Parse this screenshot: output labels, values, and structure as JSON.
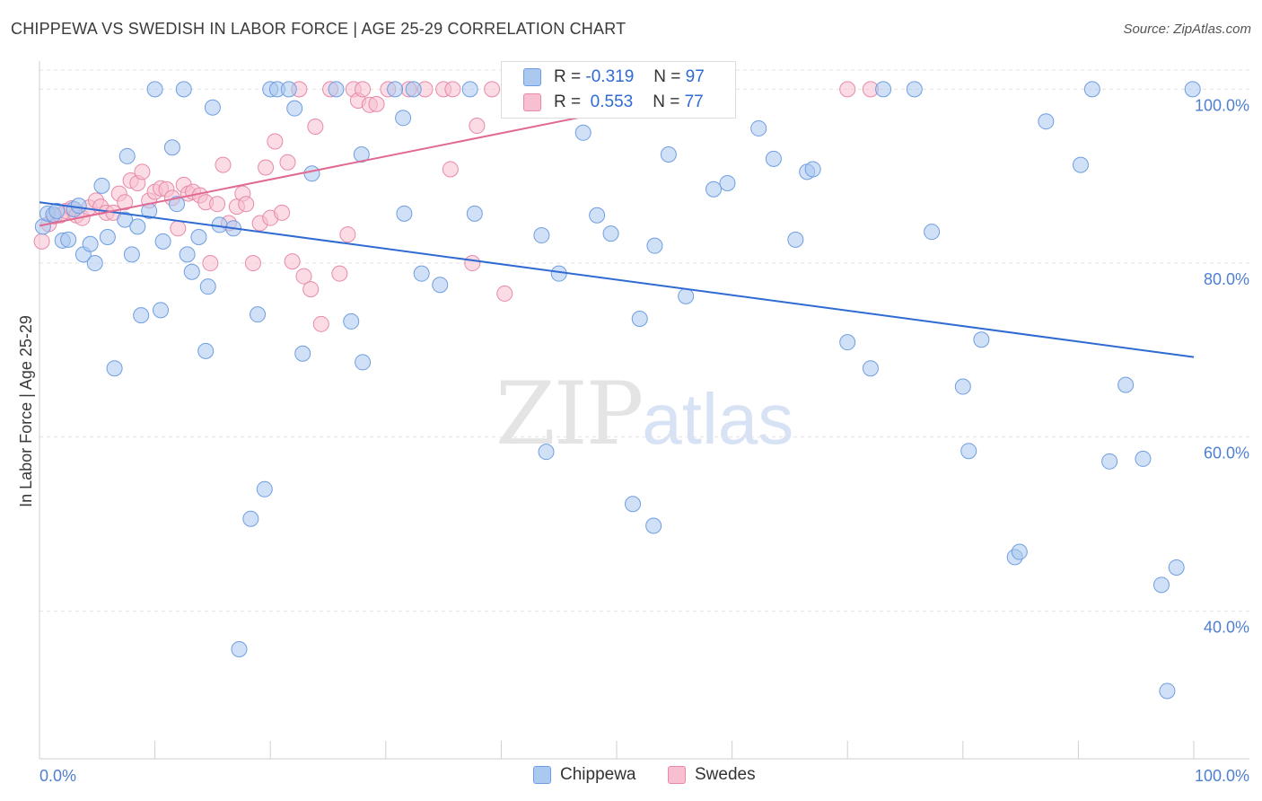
{
  "header": {
    "title": "CHIPPEWA VS SWEDISH IN LABOR FORCE | AGE 25-29 CORRELATION CHART",
    "source": "Source: ZipAtlas.com"
  },
  "watermark": {
    "zip": "ZIP",
    "atlas": "atlas"
  },
  "colors": {
    "chippewa_fill": "#aac8f0",
    "chippewa_stroke": "#6f9ee0",
    "chippewa_line": "#2f6bd3",
    "swedes_fill": "#f7bfd0",
    "swedes_stroke": "#e88aa8",
    "swedes_line": "#e06a93",
    "tick_text": "#4f7fd0"
  },
  "stats": {
    "chippewa": {
      "r_label": "R =",
      "r_value": "-0.319",
      "n_label": "N =",
      "n_value": "97"
    },
    "swedes": {
      "r_label": "R =",
      "r_value": " 0.553",
      "n_label": "N =",
      "n_value": "77"
    }
  },
  "legend": {
    "chippewa": "Chippewa",
    "swedes": "Swedes"
  },
  "chart_data": {
    "type": "scatter",
    "title": "CHIPPEWA VS SWEDISH IN LABOR FORCE | AGE 25-29 CORRELATION CHART",
    "xlabel": "",
    "ylabel": "In Labor Force | Age 25-29",
    "xlim": [
      0,
      100
    ],
    "ylim": [
      23,
      102
    ],
    "x_tick_labels": [
      "0.0%",
      "100.0%"
    ],
    "y_ticks": [
      40,
      60,
      80,
      100
    ],
    "y_tick_labels": [
      "40.0%",
      "60.0%",
      "80.0%",
      "100.0%"
    ],
    "grid": true,
    "legend_position": "bottom-center",
    "series": [
      {
        "name": "Chippewa",
        "trend": [
          [
            0,
            87.0
          ],
          [
            100,
            69.2
          ]
        ],
        "points": [
          [
            0.3,
            84.2
          ],
          [
            0.7,
            85.7
          ],
          [
            1.2,
            85.6
          ],
          [
            1.5,
            86.0
          ],
          [
            2.0,
            82.6
          ],
          [
            2.5,
            82.7
          ],
          [
            3.0,
            86.2
          ],
          [
            3.4,
            86.6
          ],
          [
            3.8,
            81.0
          ],
          [
            4.4,
            82.2
          ],
          [
            4.8,
            80.0
          ],
          [
            5.4,
            88.9
          ],
          [
            5.9,
            83.0
          ],
          [
            6.5,
            67.9
          ],
          [
            7.4,
            85.0
          ],
          [
            7.6,
            92.3
          ],
          [
            8.0,
            81.0
          ],
          [
            8.5,
            84.2
          ],
          [
            8.8,
            74.0
          ],
          [
            9.5,
            86.0
          ],
          [
            10.0,
            100.0
          ],
          [
            10.5,
            74.6
          ],
          [
            10.7,
            82.5
          ],
          [
            11.5,
            93.3
          ],
          [
            11.9,
            86.8
          ],
          [
            12.5,
            100.0
          ],
          [
            12.8,
            81.0
          ],
          [
            13.2,
            79.0
          ],
          [
            13.8,
            83.0
          ],
          [
            14.4,
            69.9
          ],
          [
            14.6,
            77.3
          ],
          [
            15.0,
            97.9
          ],
          [
            15.6,
            84.4
          ],
          [
            16.8,
            84.0
          ],
          [
            17.3,
            35.6
          ],
          [
            18.3,
            50.6
          ],
          [
            18.9,
            74.1
          ],
          [
            19.5,
            54.0
          ],
          [
            20.0,
            100.0
          ],
          [
            20.6,
            100.0
          ],
          [
            21.6,
            100.0
          ],
          [
            22.1,
            97.8
          ],
          [
            22.8,
            69.6
          ],
          [
            23.6,
            90.3
          ],
          [
            25.7,
            100.0
          ],
          [
            27.0,
            73.3
          ],
          [
            27.9,
            92.5
          ],
          [
            28.0,
            68.6
          ],
          [
            30.8,
            100.0
          ],
          [
            31.5,
            96.7
          ],
          [
            31.6,
            85.7
          ],
          [
            32.4,
            100.0
          ],
          [
            33.1,
            78.8
          ],
          [
            34.7,
            77.5
          ],
          [
            37.3,
            100.0
          ],
          [
            37.7,
            85.7
          ],
          [
            41.0,
            100.0
          ],
          [
            43.5,
            83.2
          ],
          [
            43.9,
            58.3
          ],
          [
            45.0,
            78.8
          ],
          [
            47.1,
            95.0
          ],
          [
            48.3,
            85.5
          ],
          [
            49.5,
            83.4
          ],
          [
            49.9,
            100.0
          ],
          [
            51.4,
            52.3
          ],
          [
            52.0,
            73.6
          ],
          [
            53.2,
            49.8
          ],
          [
            53.3,
            82.0
          ],
          [
            54.5,
            92.5
          ],
          [
            56.0,
            76.2
          ],
          [
            58.4,
            88.5
          ],
          [
            59.6,
            89.2
          ],
          [
            62.3,
            95.5
          ],
          [
            63.6,
            92.0
          ],
          [
            65.5,
            82.7
          ],
          [
            66.5,
            90.5
          ],
          [
            67.0,
            90.8
          ],
          [
            70.0,
            70.9
          ],
          [
            72.0,
            67.9
          ],
          [
            73.1,
            100.0
          ],
          [
            75.8,
            100.0
          ],
          [
            77.3,
            83.6
          ],
          [
            80.0,
            65.8
          ],
          [
            80.5,
            58.4
          ],
          [
            81.6,
            71.2
          ],
          [
            84.5,
            46.2
          ],
          [
            84.9,
            46.8
          ],
          [
            87.2,
            96.3
          ],
          [
            90.2,
            91.3
          ],
          [
            91.2,
            100.0
          ],
          [
            92.7,
            57.2
          ],
          [
            94.1,
            66.0
          ],
          [
            95.6,
            57.5
          ],
          [
            97.2,
            43.0
          ],
          [
            98.5,
            45.0
          ],
          [
            97.7,
            30.8
          ],
          [
            99.9,
            100.0
          ]
        ]
      },
      {
        "name": "Swedes",
        "trend": [
          [
            0,
            84.3
          ],
          [
            59,
            100.0
          ]
        ],
        "points": [
          [
            0.2,
            82.5
          ],
          [
            0.8,
            84.5
          ],
          [
            1.3,
            85.4
          ],
          [
            1.8,
            85.5
          ],
          [
            2.3,
            86.0
          ],
          [
            2.8,
            86.3
          ],
          [
            3.2,
            85.5
          ],
          [
            3.7,
            85.2
          ],
          [
            4.3,
            86.4
          ],
          [
            4.9,
            87.2
          ],
          [
            5.3,
            86.5
          ],
          [
            5.8,
            85.8
          ],
          [
            6.4,
            85.8
          ],
          [
            6.9,
            88.0
          ],
          [
            7.4,
            87.0
          ],
          [
            7.9,
            89.5
          ],
          [
            8.5,
            89.2
          ],
          [
            8.9,
            90.5
          ],
          [
            9.5,
            87.2
          ],
          [
            10.0,
            88.2
          ],
          [
            10.5,
            88.6
          ],
          [
            11.0,
            88.5
          ],
          [
            11.5,
            87.5
          ],
          [
            12.0,
            84.0
          ],
          [
            12.5,
            89.0
          ],
          [
            12.9,
            88.0
          ],
          [
            13.3,
            88.2
          ],
          [
            13.9,
            87.8
          ],
          [
            14.4,
            87.0
          ],
          [
            14.8,
            80.0
          ],
          [
            15.4,
            86.8
          ],
          [
            15.9,
            91.3
          ],
          [
            16.4,
            84.6
          ],
          [
            17.1,
            86.5
          ],
          [
            17.6,
            88.0
          ],
          [
            17.9,
            86.8
          ],
          [
            18.5,
            80.0
          ],
          [
            19.1,
            84.6
          ],
          [
            19.6,
            91.0
          ],
          [
            20.0,
            85.2
          ],
          [
            20.4,
            94.0
          ],
          [
            21.0,
            85.8
          ],
          [
            21.5,
            91.6
          ],
          [
            21.9,
            80.2
          ],
          [
            22.5,
            100.0
          ],
          [
            22.9,
            78.5
          ],
          [
            23.5,
            77.0
          ],
          [
            23.9,
            95.7
          ],
          [
            24.4,
            73.0
          ],
          [
            25.2,
            100.0
          ],
          [
            26.0,
            78.8
          ],
          [
            26.7,
            83.3
          ],
          [
            27.2,
            100.0
          ],
          [
            27.6,
            98.7
          ],
          [
            28.0,
            100.0
          ],
          [
            28.6,
            98.2
          ],
          [
            29.2,
            98.3
          ],
          [
            30.2,
            100.0
          ],
          [
            32.0,
            100.0
          ],
          [
            33.4,
            100.0
          ],
          [
            35.0,
            100.0
          ],
          [
            35.6,
            90.8
          ],
          [
            35.8,
            100.0
          ],
          [
            37.5,
            80.0
          ],
          [
            37.9,
            95.8
          ],
          [
            39.2,
            100.0
          ],
          [
            40.3,
            76.5
          ],
          [
            41.3,
            100.0
          ],
          [
            42.0,
            100.0
          ],
          [
            43.4,
            100.0
          ],
          [
            45.0,
            100.0
          ],
          [
            46.8,
            100.0
          ],
          [
            49.9,
            100.0
          ],
          [
            52.0,
            100.0
          ],
          [
            56.0,
            100.0
          ],
          [
            70.0,
            100.0
          ],
          [
            72.0,
            100.0
          ]
        ]
      }
    ]
  }
}
